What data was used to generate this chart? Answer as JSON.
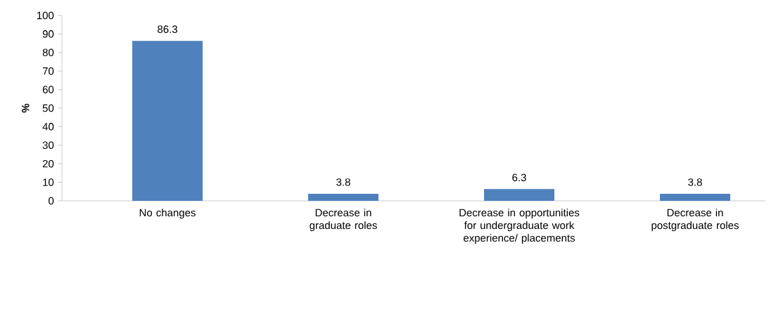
{
  "chart_data": {
    "type": "bar",
    "ylabel": "%",
    "categories": [
      "No changes",
      "Decrease in graduate roles",
      "Decrease in opportunities for undergraduate work experience/ placements",
      "Decrease in postgraduate roles"
    ],
    "values": [
      86.3,
      3.8,
      6.3,
      3.8
    ],
    "color": "#4f81bd",
    "ylim": [
      0,
      100
    ],
    "yticks": [
      0,
      10,
      20,
      30,
      40,
      50,
      60,
      70,
      80,
      90,
      100
    ],
    "grid": false,
    "data_labels": true
  }
}
